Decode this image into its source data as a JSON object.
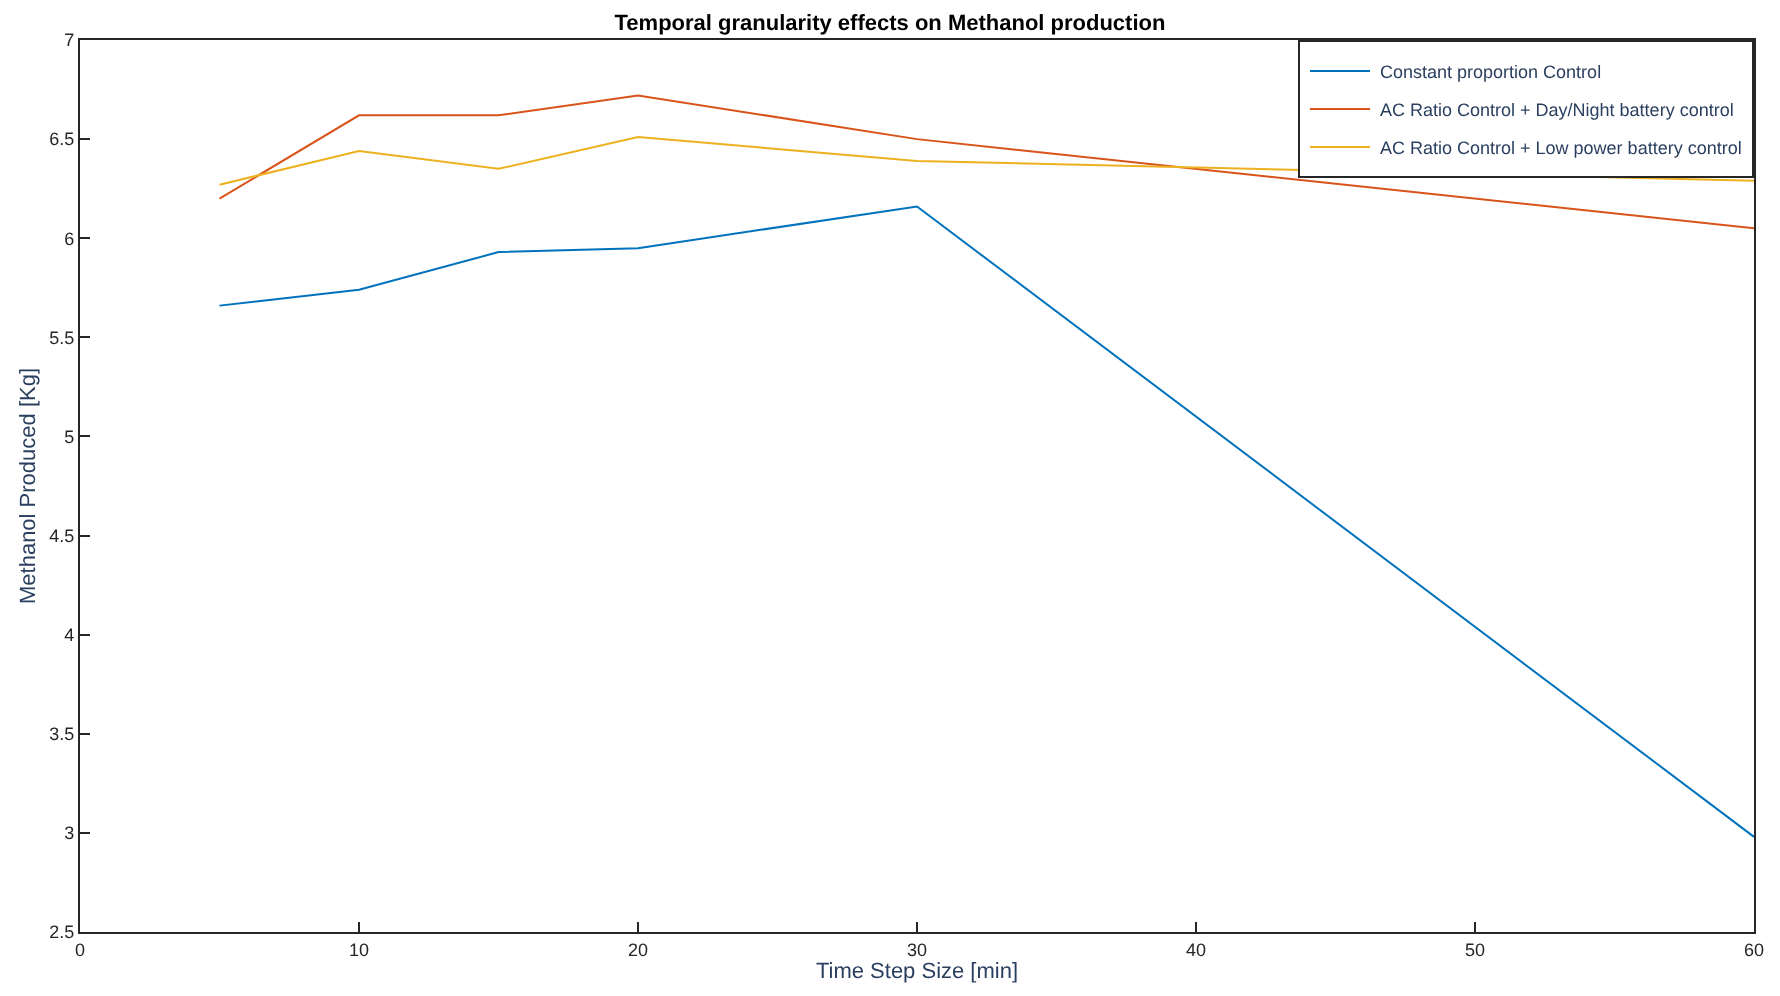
{
  "chart_data": {
    "type": "line",
    "title": "Temporal granularity effects on Methanol production",
    "xlabel": "Time Step Size [min]",
    "ylabel": "Methanol Produced [Kg]",
    "x": [
      5,
      10,
      15,
      20,
      30,
      60
    ],
    "series": [
      {
        "name": "Constant proportion Control",
        "color": "#0072bd",
        "values": [
          5.66,
          5.74,
          5.93,
          5.95,
          6.16,
          2.98
        ]
      },
      {
        "name": "AC Ratio Control + Day/Night battery control",
        "color": "#d95319",
        "values": [
          6.2,
          6.62,
          6.62,
          6.72,
          6.5,
          6.05
        ]
      },
      {
        "name": "AC Ratio Control + Low power battery control",
        "color": "#edb120",
        "values": [
          6.27,
          6.44,
          6.35,
          6.51,
          6.39,
          6.29
        ]
      }
    ],
    "xlim": [
      0,
      60
    ],
    "xticks": [
      0,
      10,
      20,
      30,
      40,
      50,
      60
    ],
    "ylim": [
      2.5,
      7
    ],
    "yticks": [
      2.5,
      3,
      3.5,
      4,
      4.5,
      5,
      5.5,
      6,
      6.5,
      7
    ],
    "legend": "top right",
    "marker": "none",
    "line_style": "solid"
  }
}
